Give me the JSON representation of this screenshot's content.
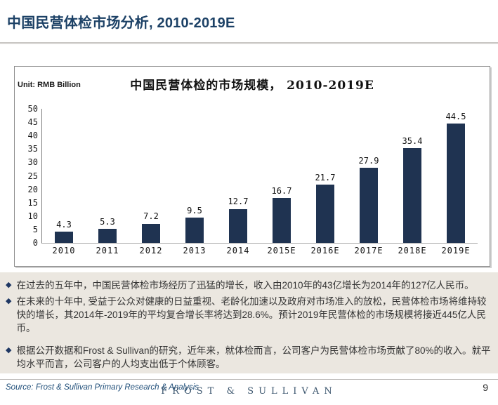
{
  "page": {
    "title": "中国民营体检市场分析, 2010-2019E",
    "page_number": "9"
  },
  "chart": {
    "unit_label": "Unit: RMB Billion",
    "title": "中国民营体检的市场规模， 2010-2019E"
  },
  "chart_data": {
    "type": "bar",
    "title": "中国民营体检的市场规模， 2010-2019E",
    "unit": "RMB Billion",
    "categories": [
      "2010",
      "2011",
      "2012",
      "2013",
      "2014",
      "2015E",
      "2016E",
      "2017E",
      "2018E",
      "2019E"
    ],
    "values": [
      4.3,
      5.3,
      7.2,
      9.5,
      12.7,
      16.7,
      21.7,
      27.9,
      35.4,
      44.5
    ],
    "xlabel": "",
    "ylabel": "",
    "ylim": [
      0,
      50
    ],
    "ytick_step": 5,
    "grid": false,
    "legend": false,
    "bar_color": "#1f3351",
    "data_labels": true
  },
  "bullets": {
    "marker": "◆",
    "marker_color": "#1f3864",
    "items": [
      {
        "text": "在过去的五年中，中国民营体检市场经历了迅猛的增长，收入由2010年的43亿增长为2014年的127亿人民币。"
      },
      {
        "text": "在未来的十年中, 受益于公众对健康的日益重视、老龄化加速以及政府对市场准入的放松，民营体检市场将维持较快的增长，其2014年-2019年的平均复合增长率将达到28.6%。预计2019年民营体检的市场规模将接近445亿人民币。"
      },
      {
        "text": "根据公开数据和Frost & Sullivan的研究，近年来，就体检而言，公司客户为民营体检市场贡献了80%的收入。就平均水平而言，公司客户的人均支出低于个体顾客。"
      }
    ]
  },
  "footer": {
    "source": "Source: Frost & Sullivan Primary Research & Analysis",
    "logo": "FROST & SULLIVAN"
  },
  "colors": {
    "title_blue": "#1c4166",
    "bar_navy": "#1f3351",
    "panel_beige": "#ebe7e0",
    "source_blue": "#1f4e79"
  }
}
